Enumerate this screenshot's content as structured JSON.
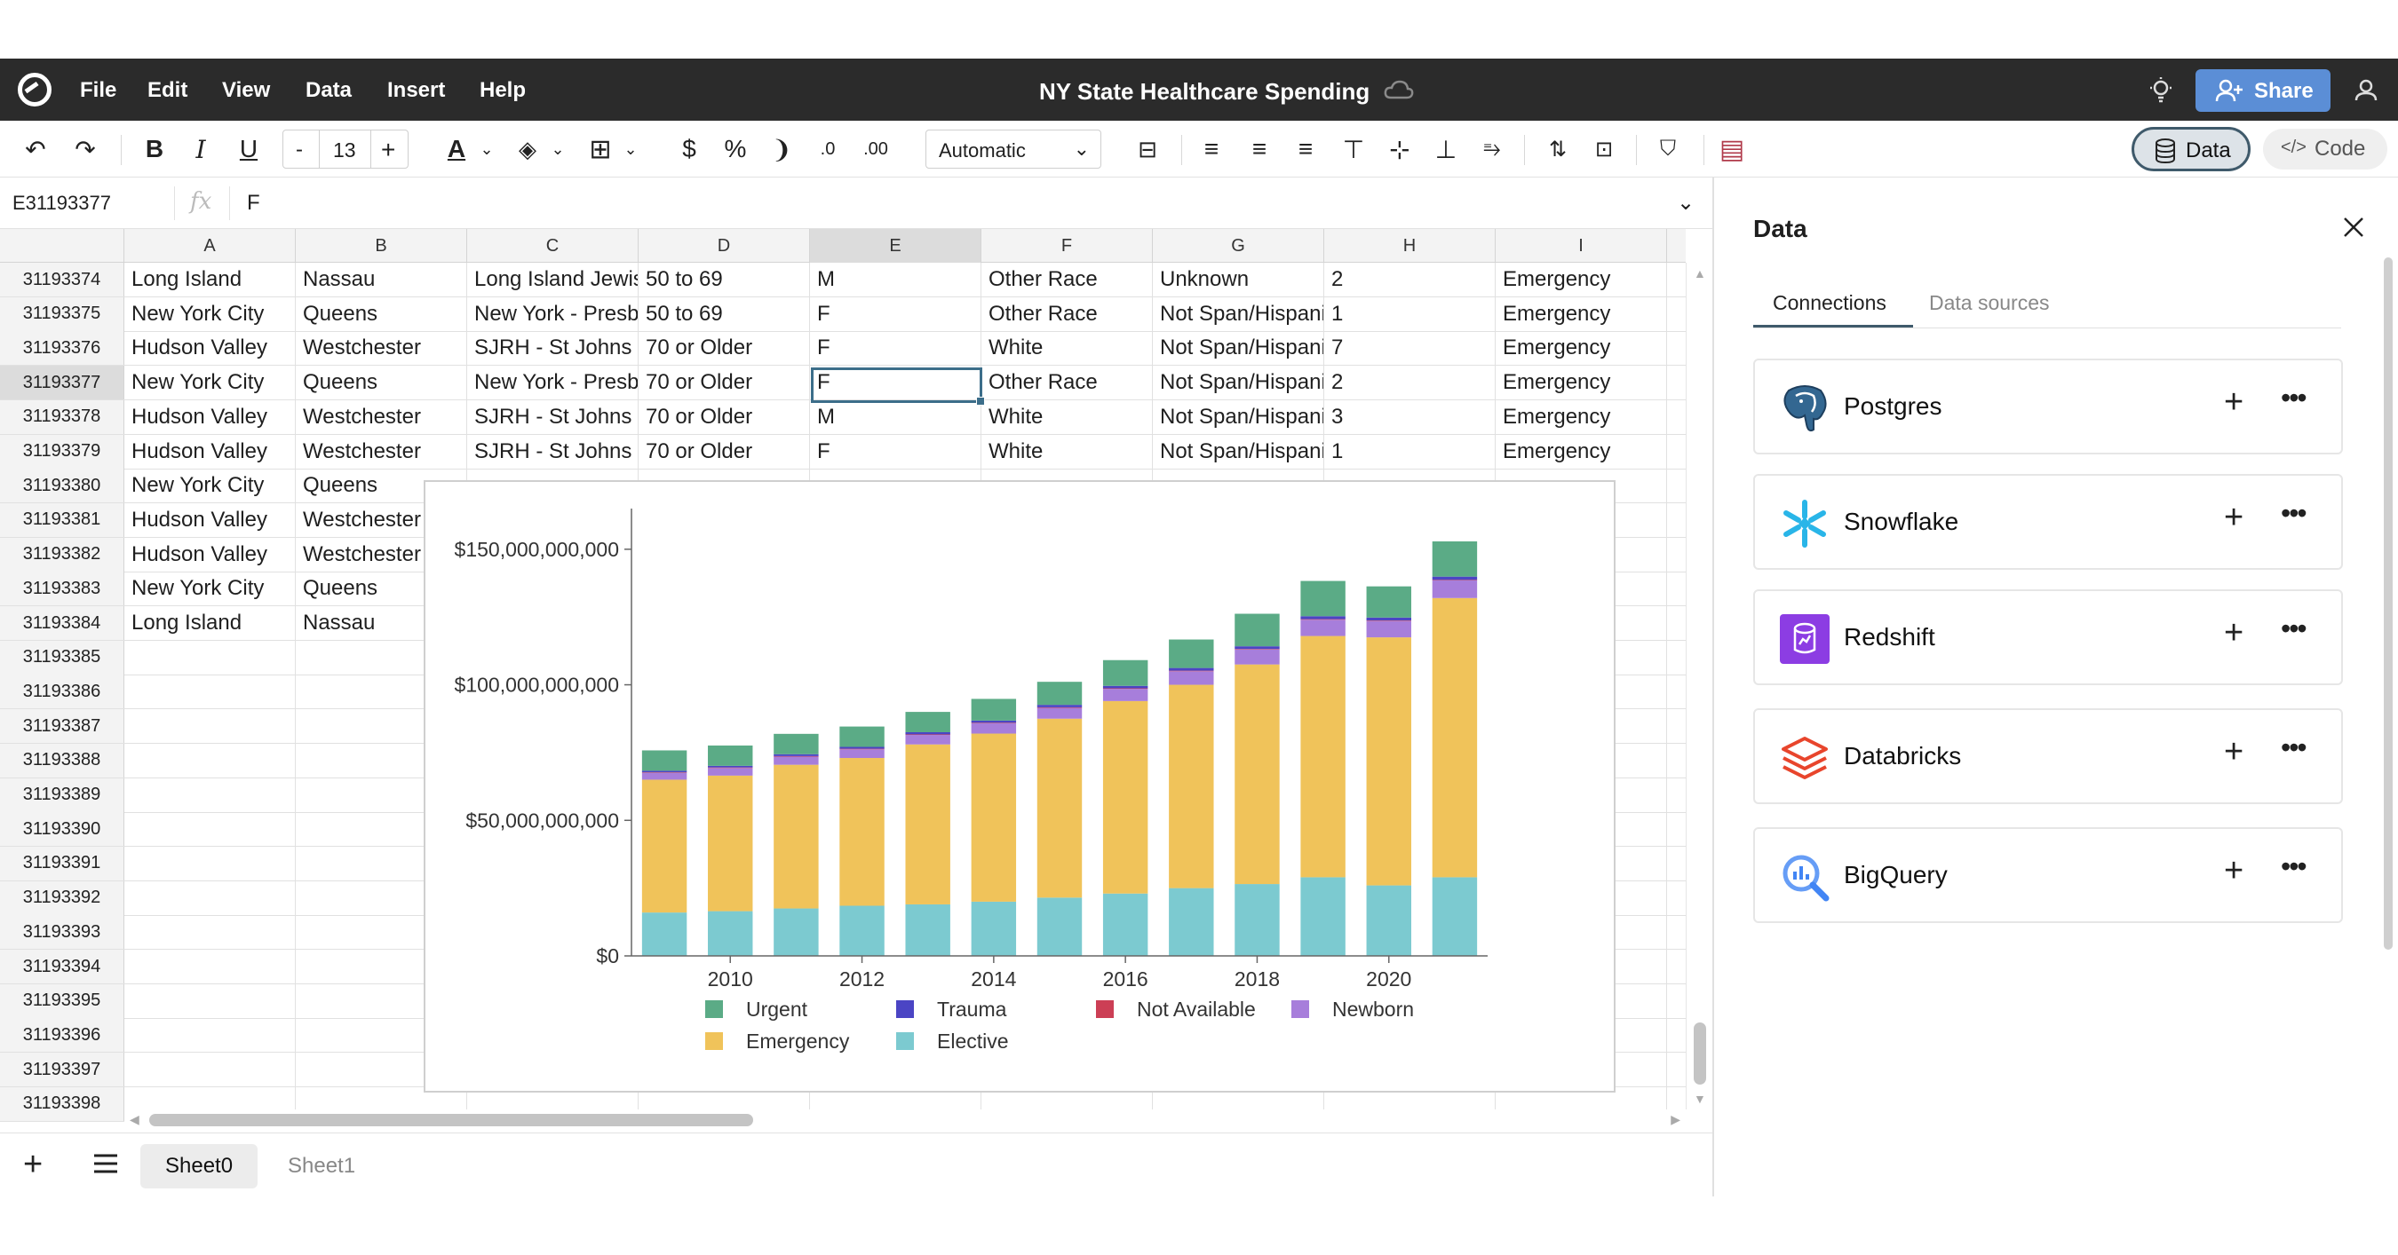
{
  "menu": {
    "items": [
      "File",
      "Edit",
      "View",
      "Data",
      "Insert",
      "Help"
    ],
    "title": "NY State Healthcare Spending",
    "share_label": "Share"
  },
  "toolbar": {
    "font_size": "13",
    "font_minus": "-",
    "font_plus": "+",
    "number_format": "Automatic",
    "data_label": "Data",
    "code_label": "Code"
  },
  "formula_bar": {
    "cell_ref": "E31193377",
    "fx": "fx",
    "value": "F"
  },
  "grid": {
    "columns": [
      "A",
      "B",
      "C",
      "D",
      "E",
      "F",
      "G",
      "H",
      "I"
    ],
    "selected_column": "E",
    "selected_row": "31193377",
    "rows": [
      {
        "num": "31193374",
        "cells": [
          "Long Island",
          "Nassau",
          "Long Island Jewish",
          "50 to 69",
          "M",
          "Other Race",
          "Unknown",
          "2",
          "Emergency"
        ]
      },
      {
        "num": "31193375",
        "cells": [
          "New York City",
          "Queens",
          "New York - Presbyterian",
          "50 to 69",
          "F",
          "Other Race",
          "Not Span/Hispanic",
          "1",
          "Emergency"
        ]
      },
      {
        "num": "31193376",
        "cells": [
          "Hudson Valley",
          "Westchester",
          "SJRH - St Johns Division",
          "70 or Older",
          "F",
          "White",
          "Not Span/Hispanic",
          "7",
          "Emergency"
        ]
      },
      {
        "num": "31193377",
        "cells": [
          "New York City",
          "Queens",
          "New York - Presbyterian",
          "70 or Older",
          "F",
          "Other Race",
          "Not Span/Hispanic",
          "2",
          "Emergency"
        ]
      },
      {
        "num": "31193378",
        "cells": [
          "Hudson Valley",
          "Westchester",
          "SJRH - St Johns Division",
          "70 or Older",
          "M",
          "White",
          "Not Span/Hispanic",
          "3",
          "Emergency"
        ]
      },
      {
        "num": "31193379",
        "cells": [
          "Hudson Valley",
          "Westchester",
          "SJRH - St Johns Division",
          "70 or Older",
          "F",
          "White",
          "Not Span/Hispanic",
          "1",
          "Emergency"
        ]
      },
      {
        "num": "31193380",
        "cells": [
          "New York City",
          "Queens",
          "",
          "",
          "",
          "",
          "",
          "",
          ""
        ]
      },
      {
        "num": "31193381",
        "cells": [
          "Hudson Valley",
          "Westchester",
          "",
          "",
          "",
          "",
          "",
          "",
          ""
        ]
      },
      {
        "num": "31193382",
        "cells": [
          "Hudson Valley",
          "Westchester",
          "",
          "",
          "",
          "",
          "",
          "",
          ""
        ]
      },
      {
        "num": "31193383",
        "cells": [
          "New York City",
          "Queens",
          "",
          "",
          "",
          "",
          "",
          "",
          ""
        ]
      },
      {
        "num": "31193384",
        "cells": [
          "Long Island",
          "Nassau",
          "",
          "",
          "",
          "",
          "",
          "",
          ""
        ]
      },
      {
        "num": "31193385",
        "cells": [
          "",
          "",
          "",
          "",
          "",
          "",
          "",
          "",
          ""
        ]
      },
      {
        "num": "31193386",
        "cells": [
          "",
          "",
          "",
          "",
          "",
          "",
          "",
          "",
          ""
        ]
      },
      {
        "num": "31193387",
        "cells": [
          "",
          "",
          "",
          "",
          "",
          "",
          "",
          "",
          ""
        ]
      },
      {
        "num": "31193388",
        "cells": [
          "",
          "",
          "",
          "",
          "",
          "",
          "",
          "",
          ""
        ]
      },
      {
        "num": "31193389",
        "cells": [
          "",
          "",
          "",
          "",
          "",
          "",
          "",
          "",
          ""
        ]
      },
      {
        "num": "31193390",
        "cells": [
          "",
          "",
          "",
          "",
          "",
          "",
          "",
          "",
          ""
        ]
      },
      {
        "num": "31193391",
        "cells": [
          "",
          "",
          "",
          "",
          "",
          "",
          "",
          "",
          ""
        ]
      },
      {
        "num": "31193392",
        "cells": [
          "",
          "",
          "",
          "",
          "",
          "",
          "",
          "",
          ""
        ]
      },
      {
        "num": "31193393",
        "cells": [
          "",
          "",
          "",
          "",
          "",
          "",
          "",
          "",
          ""
        ]
      },
      {
        "num": "31193394",
        "cells": [
          "",
          "",
          "",
          "",
          "",
          "",
          "",
          "",
          ""
        ]
      },
      {
        "num": "31193395",
        "cells": [
          "",
          "",
          "",
          "",
          "",
          "",
          "",
          "",
          ""
        ]
      },
      {
        "num": "31193396",
        "cells": [
          "",
          "",
          "",
          "",
          "",
          "",
          "",
          "",
          ""
        ]
      },
      {
        "num": "31193397",
        "cells": [
          "",
          "",
          "",
          "",
          "",
          "",
          "",
          "",
          ""
        ]
      },
      {
        "num": "31193398",
        "cells": [
          "",
          "",
          "",
          "",
          "",
          "",
          "",
          "",
          ""
        ]
      }
    ]
  },
  "sheets": {
    "tabs": [
      "Sheet0",
      "Sheet1"
    ],
    "active": "Sheet0"
  },
  "panel": {
    "title": "Data",
    "tabs": [
      "Connections",
      "Data sources"
    ],
    "active_tab": "Connections",
    "connections": [
      {
        "name": "Postgres",
        "icon": "postgres-icon"
      },
      {
        "name": "Snowflake",
        "icon": "snowflake-icon"
      },
      {
        "name": "Redshift",
        "icon": "redshift-icon"
      },
      {
        "name": "Databricks",
        "icon": "databricks-icon"
      },
      {
        "name": "BigQuery",
        "icon": "bigquery-icon"
      }
    ]
  },
  "colors": {
    "urgent": "#5bab86",
    "trauma": "#4b45c4",
    "not_available": "#cc3f55",
    "newborn": "#a77edb",
    "emergency": "#f0c35a",
    "elective": "#7ccad0"
  },
  "chart_data": {
    "type": "bar",
    "stacked": true,
    "title": "",
    "xlabel": "",
    "ylabel": "",
    "ylim": [
      0,
      165000000000
    ],
    "yticks": [
      0,
      50000000000,
      100000000000,
      150000000000
    ],
    "ytick_labels": [
      "$0",
      "$50,000,000,000",
      "$100,000,000,000",
      "$150,000,000,000"
    ],
    "xtick_labels": [
      "2010",
      "2012",
      "2014",
      "2016",
      "2018",
      "2020"
    ],
    "categories": [
      "2009",
      "2010",
      "2011",
      "2012",
      "2013",
      "2014",
      "2015",
      "2016",
      "2017",
      "2018",
      "2019",
      "2020",
      "2021"
    ],
    "legend_position": "bottom",
    "series": [
      {
        "name": "Elective",
        "color": "#7ccad0",
        "values": [
          16000000000,
          16500000000,
          17500000000,
          18500000000,
          19000000000,
          20000000000,
          21500000000,
          23000000000,
          25000000000,
          26500000000,
          29000000000,
          26000000000,
          29000000000
        ]
      },
      {
        "name": "Emergency",
        "color": "#f0c35a",
        "values": [
          49000000000,
          50000000000,
          53000000000,
          54500000000,
          59000000000,
          62000000000,
          66000000000,
          71000000000,
          75000000000,
          81000000000,
          89000000000,
          91500000000,
          103000000000
        ]
      },
      {
        "name": "Newborn",
        "color": "#a77edb",
        "values": [
          2500000000,
          2800000000,
          3000000000,
          3200000000,
          3500000000,
          3800000000,
          4000000000,
          4500000000,
          5000000000,
          5500000000,
          6000000000,
          6000000000,
          6500000000
        ]
      },
      {
        "name": "Not Available",
        "color": "#cc3f55",
        "values": [
          200000000,
          200000000,
          200000000,
          200000000,
          200000000,
          200000000,
          200000000,
          200000000,
          200000000,
          200000000,
          200000000,
          200000000,
          200000000
        ]
      },
      {
        "name": "Trauma",
        "color": "#4b45c4",
        "values": [
          600000000,
          600000000,
          700000000,
          700000000,
          800000000,
          800000000,
          900000000,
          900000000,
          1000000000,
          1000000000,
          1100000000,
          1100000000,
          1200000000
        ]
      },
      {
        "name": "Urgent",
        "color": "#5bab86",
        "values": [
          7500000000,
          7500000000,
          7500000000,
          7500000000,
          7500000000,
          8000000000,
          8500000000,
          9500000000,
          10500000000,
          12000000000,
          13000000000,
          11500000000,
          13000000000
        ]
      }
    ],
    "legend_order": [
      "Urgent",
      "Trauma",
      "Not Available",
      "Newborn",
      "Emergency",
      "Elective"
    ]
  }
}
